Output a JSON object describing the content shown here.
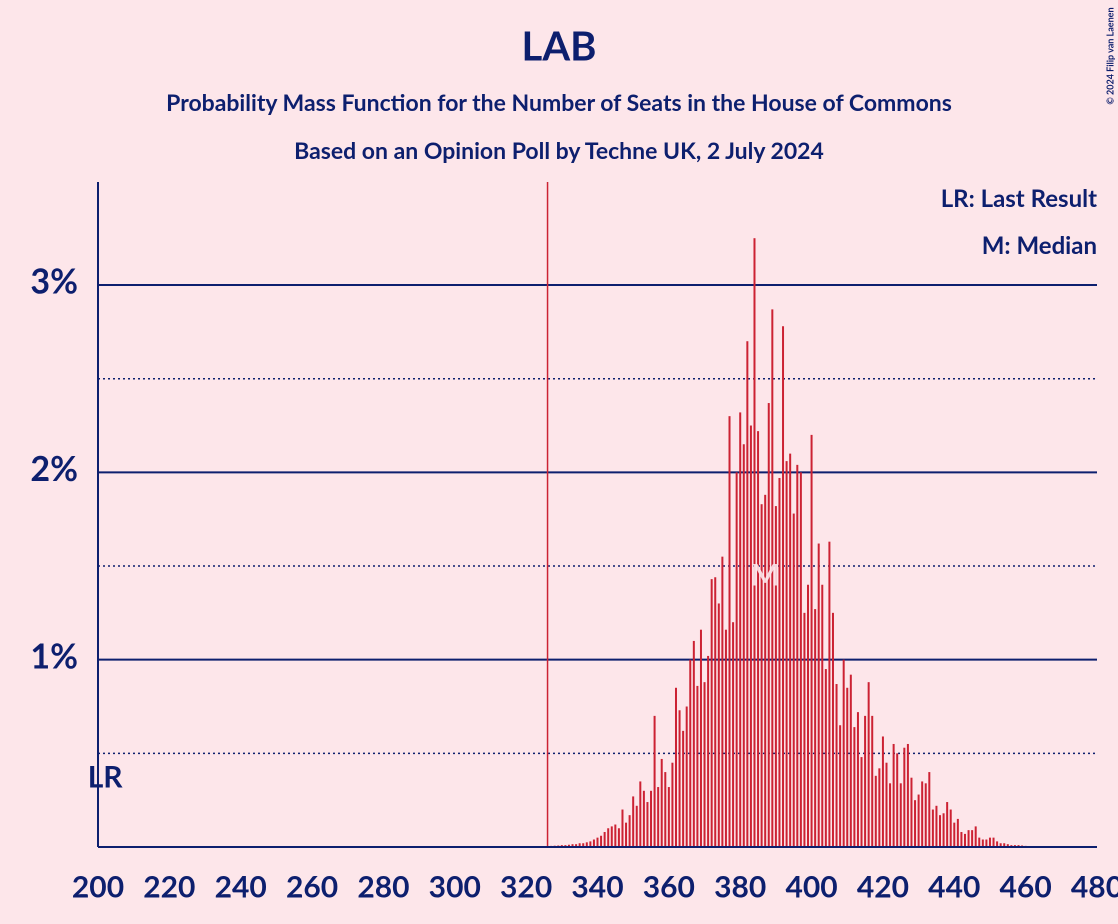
{
  "chart_data": {
    "type": "bar",
    "title": "LAB",
    "subtitle": "Probability Mass Function for the Number of Seats in the House of Commons",
    "subtitle2": "Based on an Opinion Poll by Techne UK, 2 July 2024",
    "legend_items": [
      "LR: Last Result",
      "M: Median"
    ],
    "credit": "© 2024 Filip van Laenen",
    "last_result": 202,
    "last_result_label": "LR",
    "median": 387,
    "median_label": "M",
    "majority": 326,
    "color": "#cc2233",
    "majority_color": "#cc2233",
    "axis_color": "#0d1f6e",
    "background": "#fde6ea",
    "x": [
      326,
      327,
      328,
      329,
      330,
      331,
      332,
      333,
      334,
      335,
      336,
      337,
      338,
      339,
      340,
      341,
      342,
      343,
      344,
      345,
      346,
      347,
      348,
      349,
      350,
      351,
      352,
      353,
      354,
      355,
      356,
      357,
      358,
      359,
      360,
      361,
      362,
      363,
      364,
      365,
      366,
      367,
      368,
      369,
      370,
      371,
      372,
      373,
      374,
      375,
      376,
      377,
      378,
      379,
      380,
      381,
      382,
      383,
      384,
      385,
      386,
      387,
      388,
      389,
      390,
      391,
      392,
      393,
      394,
      395,
      396,
      397,
      398,
      399,
      400,
      401,
      402,
      403,
      404,
      405,
      406,
      407,
      408,
      409,
      410,
      411,
      412,
      413,
      414,
      415,
      416,
      417,
      418,
      419,
      420,
      421,
      422,
      423,
      424,
      425,
      426,
      427,
      428,
      429,
      430,
      431,
      432,
      433,
      434,
      435,
      436,
      437,
      438,
      439,
      440,
      441,
      442,
      443,
      444,
      445,
      446,
      447,
      448,
      449,
      450,
      451,
      452,
      453,
      454,
      455,
      456,
      457,
      458,
      459,
      460,
      461,
      462,
      463,
      464,
      465,
      466,
      467,
      468,
      469,
      470
    ],
    "values": [
      0.005,
      0.006,
      0.007,
      0.008,
      0.01,
      0.01,
      0.012,
      0.015,
      0.015,
      0.02,
      0.02,
      0.025,
      0.03,
      0.04,
      0.05,
      0.06,
      0.08,
      0.1,
      0.11,
      0.12,
      0.1,
      0.2,
      0.13,
      0.17,
      0.27,
      0.22,
      0.35,
      0.3,
      0.24,
      0.3,
      0.7,
      0.32,
      0.47,
      0.4,
      0.32,
      0.45,
      0.85,
      0.73,
      0.62,
      0.75,
      1.0,
      1.1,
      0.86,
      1.16,
      0.88,
      1.02,
      1.43,
      1.44,
      1.3,
      1.55,
      1.16,
      2.3,
      1.2,
      2.0,
      2.32,
      2.15,
      2.7,
      2.25,
      3.25,
      2.22,
      1.83,
      1.88,
      2.37,
      2.87,
      1.82,
      1.97,
      2.78,
      2.06,
      2.1,
      1.78,
      2.04,
      2.0,
      1.25,
      1.4,
      2.2,
      1.27,
      1.62,
      1.4,
      0.95,
      1.63,
      1.25,
      0.87,
      0.65,
      1.0,
      0.85,
      0.92,
      0.64,
      0.72,
      0.48,
      0.7,
      0.88,
      0.7,
      0.38,
      0.42,
      0.59,
      0.45,
      0.34,
      0.55,
      0.5,
      0.34,
      0.53,
      0.55,
      0.37,
      0.25,
      0.28,
      0.35,
      0.34,
      0.4,
      0.2,
      0.22,
      0.17,
      0.18,
      0.24,
      0.2,
      0.13,
      0.15,
      0.08,
      0.07,
      0.09,
      0.09,
      0.11,
      0.05,
      0.04,
      0.04,
      0.05,
      0.05,
      0.03,
      0.02,
      0.02,
      0.015,
      0.01,
      0.01,
      0.01,
      0.008,
      0.006,
      0.005,
      0.004,
      0.004,
      0.003,
      0.003,
      0.002,
      0.002,
      0.002,
      0.001,
      0.001
    ],
    "xlim": [
      200,
      480
    ],
    "xticks": [
      200,
      220,
      240,
      260,
      280,
      300,
      320,
      340,
      360,
      380,
      400,
      420,
      440,
      460,
      480
    ],
    "ylim": [
      0,
      3.55
    ],
    "yticks": [
      {
        "value": 1,
        "label": "1%"
      },
      {
        "value": 2,
        "label": "2%"
      },
      {
        "value": 3,
        "label": "3%"
      }
    ],
    "minor_yticks": [
      0.5,
      1.5,
      2.5
    ],
    "grid": true
  }
}
